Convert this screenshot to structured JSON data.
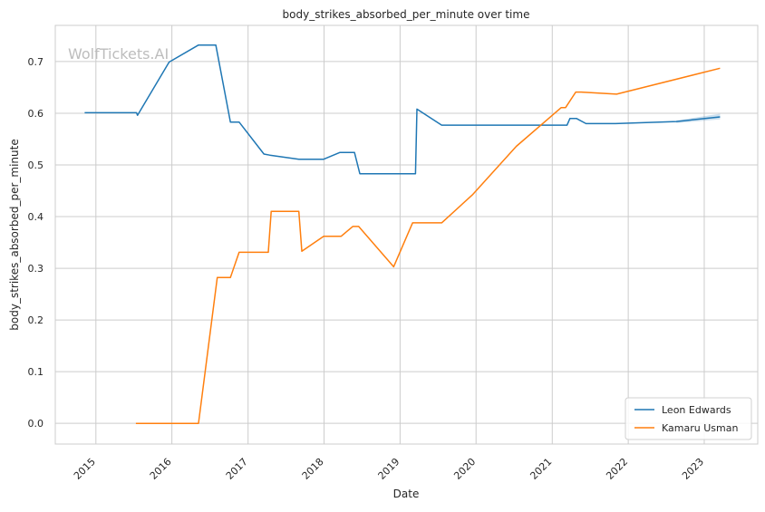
{
  "watermark": "WolfTickets.AI",
  "chart_data": {
    "type": "line",
    "title": "body_strikes_absorbed_per_minute over time",
    "xlabel": "Date",
    "ylabel": "body_strikes_absorbed_per_minute",
    "xlim": [
      "2014-06-20",
      "2023-09-15"
    ],
    "ylim": [
      -0.04,
      0.77
    ],
    "x_ticks": [
      "2015",
      "2016",
      "2017",
      "2018",
      "2019",
      "2020",
      "2021",
      "2022",
      "2023"
    ],
    "y_ticks": [
      "0.0",
      "0.1",
      "0.2",
      "0.3",
      "0.4",
      "0.5",
      "0.6",
      "0.7"
    ],
    "grid": true,
    "legend_position": "lower-right",
    "series": [
      {
        "name": "Leon Edwards",
        "color": "#1f77b4",
        "points": [
          [
            "2014-11-08",
            0.601
          ],
          [
            "2015-07-15",
            0.601
          ],
          [
            "2015-07-20",
            0.596
          ],
          [
            "2015-12-19",
            0.699
          ],
          [
            "2016-05-08",
            0.732
          ],
          [
            "2016-07-30",
            0.732
          ],
          [
            "2016-10-08",
            0.583
          ],
          [
            "2016-11-19",
            0.583
          ],
          [
            "2017-03-18",
            0.521
          ],
          [
            "2017-04-15",
            0.519
          ],
          [
            "2017-09-02",
            0.511
          ],
          [
            "2017-12-30",
            0.511
          ],
          [
            "2018-03-17",
            0.524
          ],
          [
            "2018-05-27",
            0.524
          ],
          [
            "2018-06-22",
            0.483
          ],
          [
            "2019-03-16",
            0.483
          ],
          [
            "2019-03-23",
            0.608
          ],
          [
            "2019-07-20",
            0.577
          ],
          [
            "2021-03-13",
            0.577
          ],
          [
            "2021-03-27",
            0.59
          ],
          [
            "2021-04-27",
            0.59
          ],
          [
            "2021-06-12",
            0.58
          ],
          [
            "2021-11-01",
            0.58
          ],
          [
            "2022-08-20",
            0.584
          ],
          [
            "2023-03-18",
            0.593
          ]
        ],
        "band": [
          [
            "2022-08-20",
            0.581,
            0.586
          ],
          [
            "2023-03-18",
            0.588,
            0.599
          ]
        ]
      },
      {
        "name": "Kamaru Usman",
        "color": "#ff7f0e",
        "points": [
          [
            "2015-07-12",
            0.0
          ],
          [
            "2016-05-08",
            0.0
          ],
          [
            "2016-08-06",
            0.282
          ],
          [
            "2016-10-08",
            0.282
          ],
          [
            "2016-11-19",
            0.331
          ],
          [
            "2017-04-08",
            0.331
          ],
          [
            "2017-04-22",
            0.41
          ],
          [
            "2017-09-02",
            0.41
          ],
          [
            "2017-09-16",
            0.333
          ],
          [
            "2017-12-30",
            0.362
          ],
          [
            "2018-03-24",
            0.362
          ],
          [
            "2018-05-19",
            0.381
          ],
          [
            "2018-06-16",
            0.381
          ],
          [
            "2018-12-01",
            0.303
          ],
          [
            "2019-03-02",
            0.388
          ],
          [
            "2019-07-20",
            0.388
          ],
          [
            "2019-12-14",
            0.442
          ],
          [
            "2020-07-12",
            0.536
          ],
          [
            "2021-02-13",
            0.611
          ],
          [
            "2021-03-06",
            0.611
          ],
          [
            "2021-04-24",
            0.641
          ],
          [
            "2021-05-20",
            0.641
          ],
          [
            "2021-11-06",
            0.637
          ],
          [
            "2023-03-18",
            0.687
          ]
        ]
      }
    ]
  }
}
